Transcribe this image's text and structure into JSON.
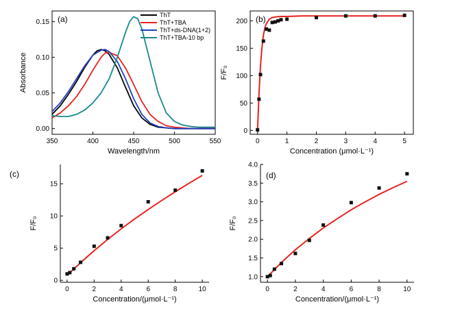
{
  "chart_data": [
    {
      "panel": "(a)",
      "type": "line",
      "xlabel": "Wavelength/nm",
      "ylabel": "Absorbance",
      "xlim": [
        350,
        550
      ],
      "ylim": [
        -0.008,
        0.165
      ],
      "xticks": [
        350,
        400,
        450,
        500,
        550
      ],
      "yticks": [
        0.0,
        0.05,
        0.1,
        0.15
      ],
      "ytick_labels": [
        "0.00",
        "0.05",
        "0.10",
        "0.15"
      ],
      "legend_position": "top-right",
      "series": [
        {
          "name": "ThT",
          "color": "#000000",
          "x": [
            350,
            360,
            370,
            380,
            390,
            400,
            405,
            410,
            415,
            420,
            430,
            440,
            450,
            460,
            470,
            480,
            490,
            500,
            510,
            520,
            530,
            540,
            550
          ],
          "y": [
            0.02,
            0.032,
            0.048,
            0.066,
            0.086,
            0.103,
            0.109,
            0.111,
            0.109,
            0.104,
            0.085,
            0.058,
            0.032,
            0.015,
            0.006,
            0.002,
            0.001,
            0.0,
            0.0,
            0.0,
            0.0,
            0.0,
            0.0
          ]
        },
        {
          "name": "ThT+TBA",
          "color": "#e8211c",
          "x": [
            350,
            360,
            370,
            380,
            390,
            400,
            410,
            415,
            420,
            430,
            440,
            450,
            460,
            470,
            480,
            490,
            500,
            510,
            520,
            530,
            540,
            550
          ],
          "y": [
            0.015,
            0.022,
            0.032,
            0.045,
            0.062,
            0.082,
            0.1,
            0.106,
            0.107,
            0.102,
            0.085,
            0.062,
            0.038,
            0.02,
            0.01,
            0.004,
            0.002,
            0.001,
            0.0,
            0.0,
            0.0,
            0.0
          ]
        },
        {
          "name": "ThT+ds-DNA(1+2)",
          "color": "#1f3fbf",
          "x": [
            350,
            360,
            370,
            380,
            390,
            400,
            410,
            415,
            420,
            430,
            440,
            450,
            460,
            470,
            480,
            490,
            500,
            510,
            520,
            530,
            540,
            550
          ],
          "y": [
            0.024,
            0.036,
            0.052,
            0.07,
            0.088,
            0.103,
            0.11,
            0.111,
            0.108,
            0.094,
            0.07,
            0.042,
            0.02,
            0.008,
            0.003,
            0.001,
            0.0,
            0.0,
            0.0,
            0.0,
            0.0,
            0.0
          ]
        },
        {
          "name": "ThT+TBA-10 bp",
          "color": "#16888a",
          "x": [
            350,
            360,
            370,
            380,
            390,
            400,
            410,
            420,
            430,
            440,
            445,
            450,
            455,
            460,
            470,
            480,
            490,
            500,
            510,
            520,
            530,
            540,
            550
          ],
          "y": [
            0.018,
            0.017,
            0.017,
            0.02,
            0.026,
            0.036,
            0.05,
            0.07,
            0.1,
            0.135,
            0.15,
            0.157,
            0.154,
            0.14,
            0.095,
            0.05,
            0.022,
            0.01,
            0.005,
            0.003,
            0.002,
            0.002,
            0.002
          ]
        }
      ]
    },
    {
      "panel": "(b)",
      "type": "scatter",
      "xlabel": "Concentration (μmol·L⁻¹)",
      "ylabel": "F/F₀",
      "xlim": [
        -0.25,
        5.3
      ],
      "ylim": [
        -7,
        218
      ],
      "xticks": [
        0,
        1,
        2,
        3,
        4,
        5
      ],
      "yticks": [
        0,
        50,
        100,
        150,
        200
      ],
      "ytick_labels": [
        "0",
        "50",
        "100",
        "150",
        "200"
      ],
      "points": {
        "x": [
          0,
          0.05,
          0.1,
          0.2,
          0.3,
          0.4,
          0.5,
          0.6,
          0.7,
          0.8,
          1.0,
          2.0,
          3.0,
          4.0,
          5.0
        ],
        "y": [
          1,
          57,
          102,
          163,
          185,
          183,
          197,
          198,
          200,
          202,
          203,
          206,
          209,
          209,
          210
        ]
      },
      "fit": {
        "x": [
          0,
          0.05,
          0.1,
          0.15,
          0.2,
          0.25,
          0.3,
          0.4,
          0.5,
          0.6,
          0.8,
          1.0,
          1.5,
          2.0,
          3.0,
          4.0,
          5.0
        ],
        "y": [
          0,
          68,
          118,
          152,
          174,
          187,
          195,
          203,
          206,
          207,
          208,
          208,
          209,
          209,
          209,
          209,
          209
        ],
        "color": "#e8211c"
      }
    },
    {
      "panel": "(c)",
      "type": "scatter",
      "xlabel": "Concentration/(μmol·L⁻¹)",
      "ylabel": "F/F₀",
      "xlim": [
        -0.5,
        10.5
      ],
      "ylim": [
        -0.3,
        18
      ],
      "xticks": [
        0,
        2,
        4,
        6,
        8,
        10
      ],
      "yticks": [
        0,
        5,
        10,
        15
      ],
      "ytick_labels": [
        "0",
        "5",
        "10",
        "15"
      ],
      "points": {
        "x": [
          0,
          0.2,
          0.5,
          1,
          2,
          3,
          4,
          6,
          8,
          10
        ],
        "y": [
          1.0,
          1.2,
          1.8,
          2.8,
          5.3,
          6.6,
          8.5,
          12.2,
          14.0,
          17.0
        ]
      },
      "fit": {
        "x": [
          0,
          1,
          2,
          3,
          4,
          5,
          6,
          7,
          8,
          9,
          10
        ],
        "y": [
          0.8,
          2.75,
          4.6,
          6.35,
          8.0,
          9.55,
          11.0,
          12.4,
          13.75,
          15.05,
          16.3
        ],
        "color": "#e8211c"
      }
    },
    {
      "panel": "(d)",
      "type": "scatter",
      "xlabel": "Concentration/(μmol·L⁻¹)",
      "ylabel": "F/F₀",
      "xlim": [
        -0.5,
        10.5
      ],
      "ylim": [
        0.85,
        4.0
      ],
      "xticks": [
        0,
        2,
        4,
        6,
        8,
        10
      ],
      "yticks": [
        1.0,
        1.5,
        2.0,
        2.5,
        3.0,
        3.5,
        4.0
      ],
      "ytick_labels": [
        "1.0",
        "1.5",
        "2.0",
        "2.5",
        "3.0",
        "3.5",
        "4.0"
      ],
      "points": {
        "x": [
          0,
          0.2,
          0.5,
          1,
          2,
          3,
          4,
          6,
          8,
          10
        ],
        "y": [
          1.0,
          1.03,
          1.2,
          1.35,
          1.62,
          1.97,
          2.38,
          2.98,
          3.37,
          3.75
        ]
      },
      "fit": {
        "x": [
          0,
          1,
          2,
          3,
          4,
          5,
          6,
          7,
          8,
          9,
          10
        ],
        "y": [
          1.0,
          1.38,
          1.72,
          2.02,
          2.3,
          2.55,
          2.79,
          3.0,
          3.2,
          3.38,
          3.55
        ],
        "color": "#e8211c"
      }
    }
  ]
}
